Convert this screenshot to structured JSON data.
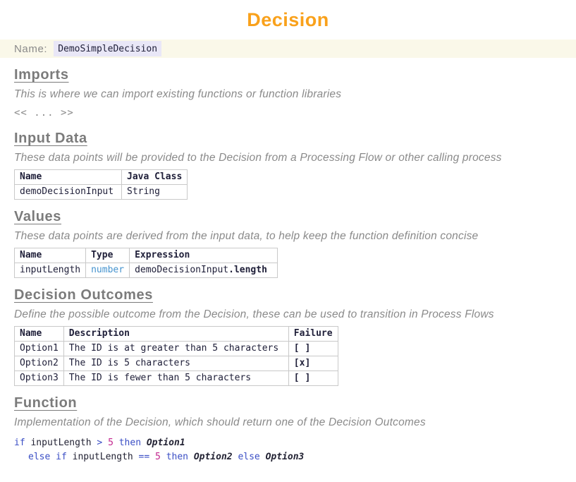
{
  "page": {
    "title": "Decision"
  },
  "colors": {
    "accent_orange": "#F9A11B",
    "heading_gray": "#7B7B7B",
    "name_bar_background": "#FAF8E9",
    "name_value_highlight": "#E9E7F7",
    "type_blue": "#4593CE",
    "code_keyword_blue": "#3A4EC5",
    "code_number_magenta": "#C3278F"
  },
  "name_bar": {
    "label": "Name:",
    "value": "DemoSimpleDecision"
  },
  "sections": {
    "imports": {
      "heading": "Imports",
      "description": "This is where we can import existing functions or function libraries",
      "placeholder": "<< ... >>"
    },
    "input_data": {
      "heading": "Input Data",
      "description": "These data points will be provided to the Decision from a Processing Flow or other calling process",
      "table": {
        "headers": [
          "Name",
          "Java Class"
        ],
        "rows": [
          [
            "demoDecisionInput",
            "String"
          ]
        ]
      }
    },
    "values": {
      "heading": "Values",
      "description": "These data points are derived from the input data, to help keep the function definition concise",
      "table": {
        "headers": [
          "Name",
          "Type",
          "Expression"
        ],
        "rows": [
          [
            "inputLength",
            {
              "spans": [
                {
                  "t": "number",
                  "cls": "cell-blue"
                }
              ]
            },
            {
              "spans": [
                {
                  "t": "demoDecisionInput",
                  "cls": ""
                },
                {
                  "t": ".length",
                  "cls": "cell-bold"
                }
              ]
            }
          ]
        ]
      }
    },
    "decision_outcomes": {
      "heading": "Decision Outcomes",
      "description": "Define the possible outcome from the Decision, these can be used to transition in Process Flows",
      "table": {
        "headers": [
          "Name",
          "Description",
          "Failure"
        ],
        "rows": [
          [
            "Option1",
            "The ID is at greater than 5 characters",
            {
              "spans": [
                {
                  "t": "[ ]",
                  "cls": "cell-bold"
                }
              ]
            }
          ],
          [
            "Option2",
            "The ID is 5 characters",
            {
              "spans": [
                {
                  "t": "[x]",
                  "cls": "cell-bold"
                }
              ]
            }
          ],
          [
            "Option3",
            "The ID is fewer than 5 characters",
            {
              "spans": [
                {
                  "t": "[ ]",
                  "cls": "cell-bold"
                }
              ]
            }
          ]
        ]
      }
    },
    "function": {
      "heading": "Function",
      "description": "Implementation of the Decision, which should return one of the Decision Outcomes",
      "code_lines": [
        {
          "indent": 0,
          "tokens": [
            {
              "t": "if",
              "c": "kw"
            },
            {
              "t": " inputLength ",
              "c": "id"
            },
            {
              "t": "> ",
              "c": "op"
            },
            {
              "t": "5",
              "c": "num"
            },
            {
              "t": " ",
              "c": "id"
            },
            {
              "t": "then",
              "c": "kw"
            },
            {
              "t": " ",
              "c": "id"
            },
            {
              "t": "Option1",
              "c": "outcome"
            }
          ]
        },
        {
          "indent": 1,
          "tokens": [
            {
              "t": "else",
              "c": "kw"
            },
            {
              "t": " ",
              "c": "id"
            },
            {
              "t": "if",
              "c": "kw"
            },
            {
              "t": " inputLength ",
              "c": "id"
            },
            {
              "t": "== ",
              "c": "op"
            },
            {
              "t": "5",
              "c": "num"
            },
            {
              "t": " ",
              "c": "id"
            },
            {
              "t": "then",
              "c": "kw"
            },
            {
              "t": " ",
              "c": "id"
            },
            {
              "t": "Option2",
              "c": "outcome"
            },
            {
              "t": " ",
              "c": "id"
            },
            {
              "t": "else",
              "c": "kw"
            },
            {
              "t": " ",
              "c": "id"
            },
            {
              "t": "Option3",
              "c": "outcome"
            }
          ]
        }
      ]
    }
  }
}
